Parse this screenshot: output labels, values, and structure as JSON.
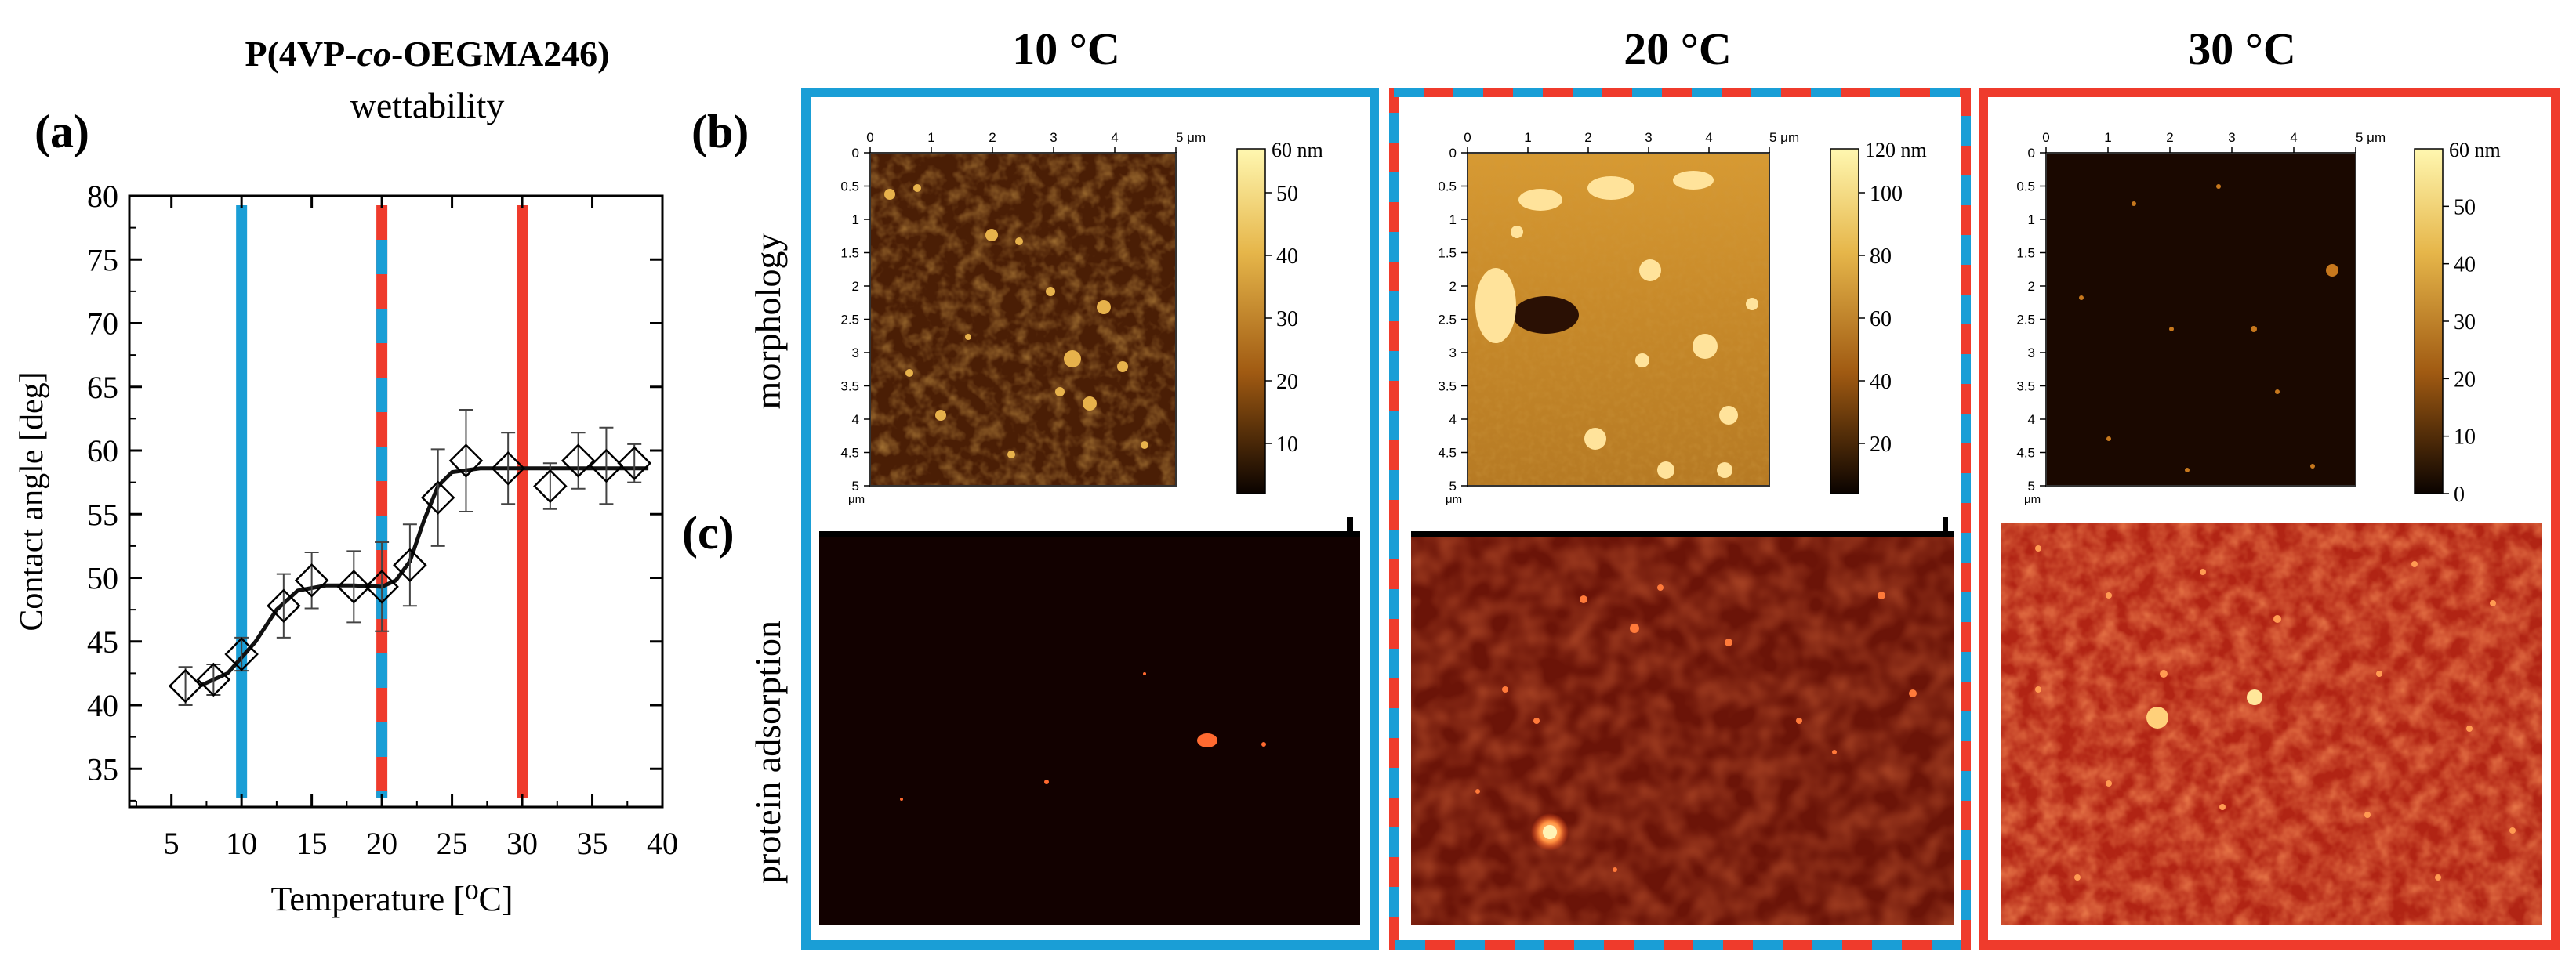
{
  "figure": {
    "panel_labels": {
      "a": "(a)",
      "b": "(b)",
      "c": "(c)"
    },
    "row_labels": {
      "morphology": "morphology",
      "protein": "protein adsorption"
    },
    "column_titles": [
      "10 °C",
      "20 °C",
      "30 °C"
    ],
    "colors": {
      "cold": "#1a9ed6",
      "hot": "#ef3b2c",
      "curve": "#111111"
    },
    "afm": {
      "x_ticks": [
        "0",
        "1",
        "2",
        "3",
        "4",
        "5 μm"
      ],
      "y_ticks": [
        "0",
        "0.5",
        "1",
        "1.5",
        "2",
        "2.5",
        "3",
        "3.5",
        "4",
        "4.5",
        "5"
      ],
      "axis_unit": "μm",
      "panels": [
        {
          "scale_max_label": "60 nm",
          "scale_ticks": [
            "50",
            "40",
            "30",
            "20",
            "10"
          ]
        },
        {
          "scale_max_label": "120 nm",
          "scale_ticks": [
            "100",
            "80",
            "60",
            "40",
            "20"
          ]
        },
        {
          "scale_max_label": "60 nm",
          "scale_ticks": [
            "50",
            "40",
            "30",
            "20",
            "10",
            "0"
          ]
        }
      ]
    }
  },
  "chart_data": {
    "type": "scatter",
    "title": "P(4VP-co-OEGMA246)",
    "title_parts": [
      "P(4VP-",
      "co",
      "-OEGMA246)"
    ],
    "subtitle": "wettability",
    "xlabel": "Temperature [⁰C]",
    "ylabel": "Contact angle [deg]",
    "xlim": [
      2,
      40
    ],
    "ylim": [
      32,
      80
    ],
    "x_ticks": [
      5,
      10,
      15,
      20,
      25,
      30,
      35,
      40
    ],
    "y_ticks": [
      35,
      40,
      45,
      50,
      55,
      60,
      65,
      70,
      75,
      80
    ],
    "grid": false,
    "marker": "diamond",
    "x": [
      6,
      8,
      10,
      13,
      15,
      18,
      20,
      22,
      24,
      26,
      29,
      32,
      34,
      36,
      38
    ],
    "y": [
      41.5,
      42,
      44,
      47.8,
      49.8,
      49.3,
      49.3,
      51,
      56.3,
      59.2,
      58.6,
      57.2,
      59.2,
      58.8,
      59
    ],
    "err": [
      1.5,
      1.2,
      1.3,
      2.5,
      2.2,
      2.8,
      3.5,
      3.2,
      3.8,
      4.0,
      2.8,
      1.8,
      2.2,
      3.0,
      1.5
    ],
    "fit_curve": {
      "x": [
        7,
        9,
        11,
        12.5,
        14,
        16,
        18,
        20,
        21,
        22,
        23,
        24,
        25,
        27,
        30,
        33,
        36,
        39
      ],
      "y": [
        41.5,
        42.5,
        45,
        47.5,
        49,
        49.4,
        49.4,
        49.3,
        49.8,
        51.3,
        54.5,
        57.2,
        58.3,
        58.6,
        58.6,
        58.6,
        58.6,
        58.6
      ]
    },
    "markers_vertical": [
      {
        "x": 10,
        "style": "cold"
      },
      {
        "x": 20,
        "style": "mixed"
      },
      {
        "x": 30,
        "style": "hot"
      }
    ]
  }
}
